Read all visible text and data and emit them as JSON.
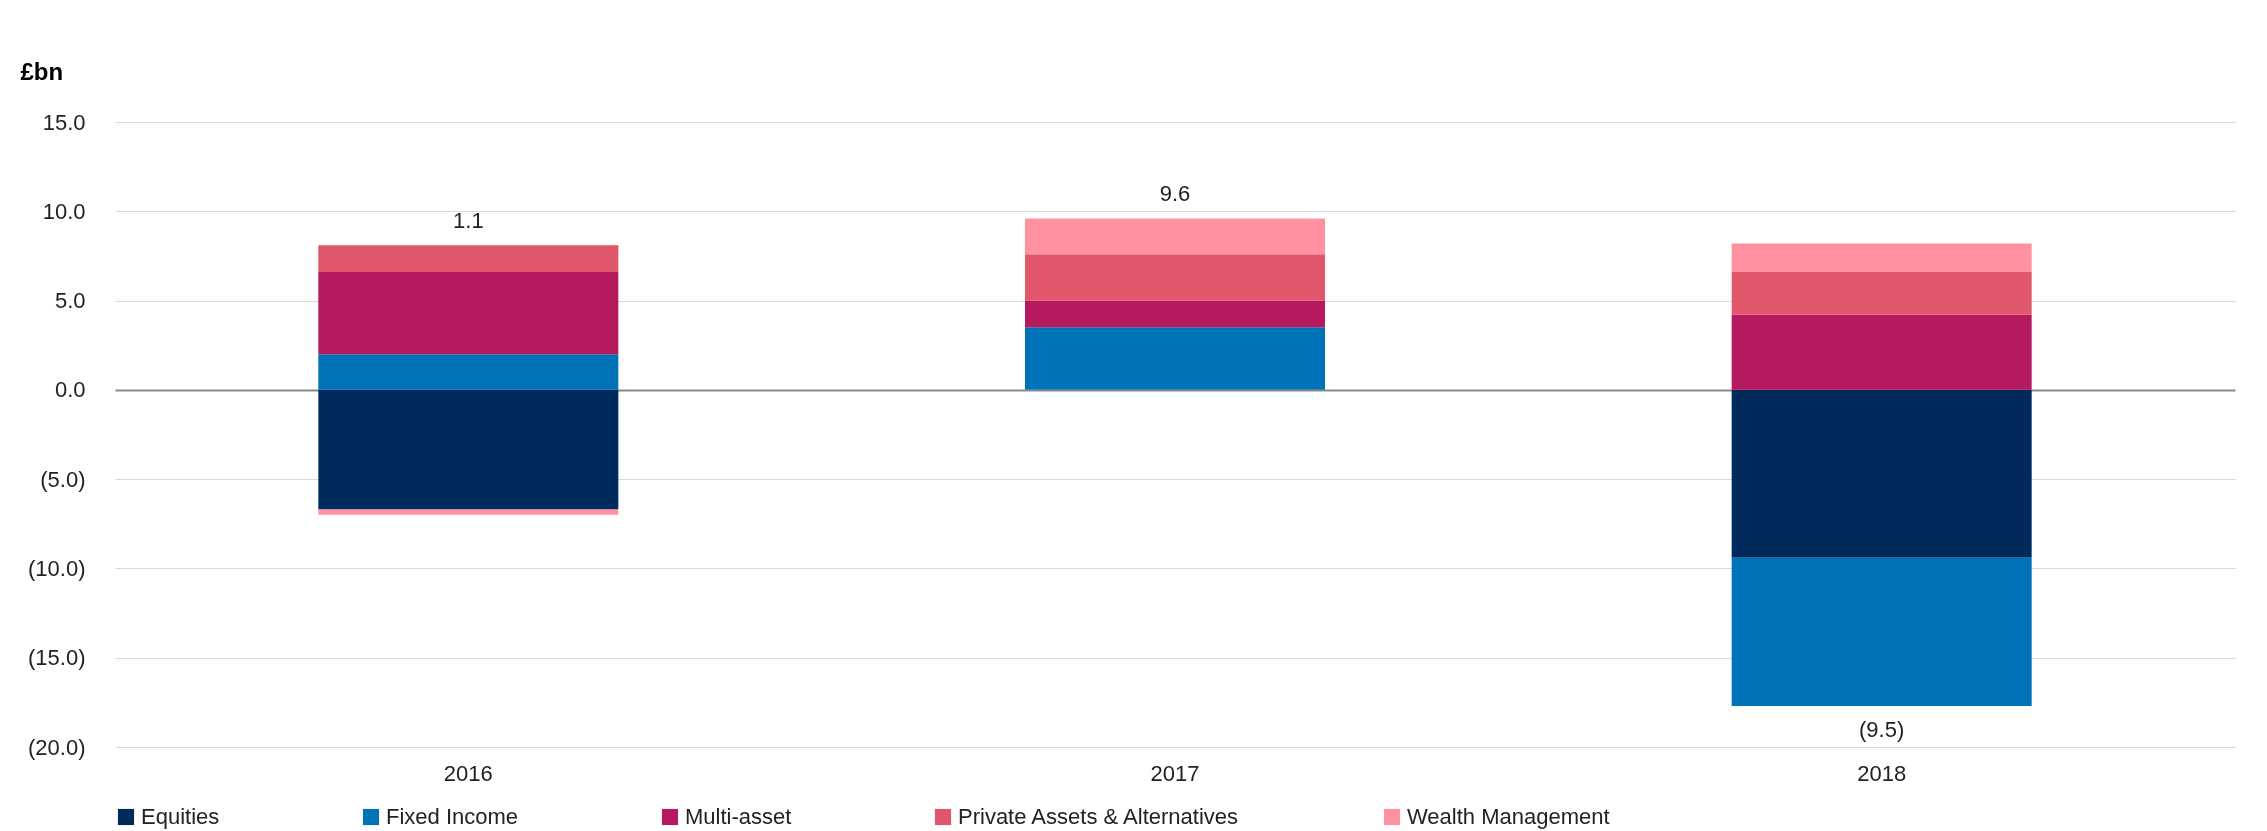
{
  "chart_data": {
    "type": "bar",
    "stacked": true,
    "ylabel": "£bn",
    "categories": [
      "2016",
      "2017",
      "2018"
    ],
    "series": [
      {
        "name": "Equities",
        "color": "#002a5c",
        "values": [
          -6.7,
          null,
          -9.4
        ]
      },
      {
        "name": "Fixed Income",
        "color": "#0072b8",
        "values": [
          2.0,
          3.5,
          -8.3
        ]
      },
      {
        "name": "Multi-asset",
        "color": "#b5195e",
        "values": [
          4.6,
          1.5,
          4.2
        ]
      },
      {
        "name": "Private Assets & Alternatives",
        "color": "#e0566a",
        "values": [
          1.5,
          2.6,
          2.4
        ]
      },
      {
        "name": "Wealth Management",
        "color": "#ff91a0",
        "values": [
          -0.3,
          2.0,
          1.6
        ]
      }
    ],
    "totals": [
      "1.1",
      "9.6",
      "(9.5)"
    ],
    "ylim": [
      -20,
      15
    ],
    "yticks": [
      {
        "value": -20,
        "label": "(20.0)"
      },
      {
        "value": -15,
        "label": "(15.0)"
      },
      {
        "value": -10,
        "label": "(10.0)"
      },
      {
        "value": -5,
        "label": "(5.0)"
      },
      {
        "value": 0,
        "label": "0.0"
      },
      {
        "value": 5,
        "label": "5.0"
      },
      {
        "value": 10,
        "label": "10.0"
      },
      {
        "value": 15,
        "label": "15.0"
      }
    ],
    "grid": "y",
    "legend": "bottom"
  }
}
